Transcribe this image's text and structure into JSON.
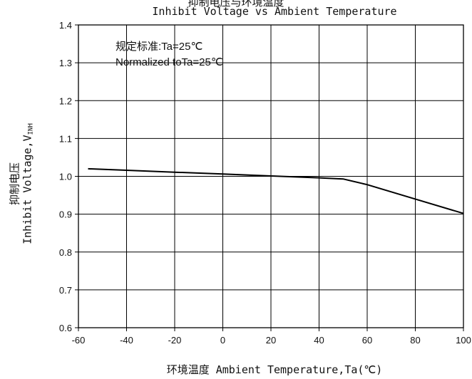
{
  "chart_data": {
    "type": "line",
    "title_cn": "抑制电压与环境温度",
    "title": "Inhibit Voltage vs Ambient Temperature",
    "xlabel": "环境温度 Ambient Temperature,Ta(℃)",
    "ylabel_cn": "抑制电压",
    "ylabel": "Inhibit Voltage,V",
    "ylabel_sub": "INH",
    "xlim": [
      -60,
      100
    ],
    "ylim": [
      0.6,
      1.4
    ],
    "x_ticks": [
      -60,
      -40,
      -20,
      0,
      20,
      40,
      60,
      80,
      100
    ],
    "y_ticks": [
      "0.6",
      "0.7",
      "0.8",
      "0.9",
      "1.0",
      "1.1",
      "1.2",
      "1.3",
      "1.4"
    ],
    "grid": true,
    "annotations": [
      "规定标准:Ta=25℃",
      "Normalized toTa=25℃"
    ],
    "series": [
      {
        "x": [
          -56,
          -40,
          -20,
          0,
          20,
          40,
          50,
          60,
          80,
          100
        ],
        "y": [
          1.02,
          1.016,
          1.011,
          1.006,
          1.001,
          0.996,
          0.993,
          0.978,
          0.94,
          0.902
        ]
      }
    ]
  }
}
